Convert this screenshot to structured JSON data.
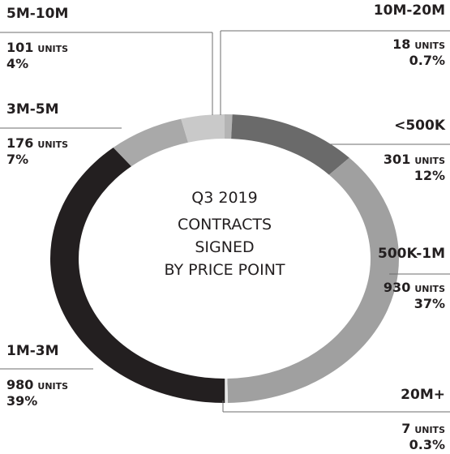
{
  "chart_data": {
    "type": "donut",
    "center_text": [
      "Q3 2019",
      "CONTRACTS",
      "SIGNED",
      "BY PRICE POINT"
    ],
    "categories": [
      "10M-20M",
      "<500K",
      "500K-1M",
      "20M+",
      "1M-3M",
      "3M-5M",
      "5M-10M"
    ],
    "values": [
      18,
      301,
      930,
      7,
      980,
      176,
      101
    ],
    "unit_label": "UNITS",
    "percent_labels": [
      "0.7%",
      "12%",
      "37%",
      "0.3%",
      "39%",
      "7%",
      "4%"
    ],
    "colors": [
      "#b4b4b4",
      "#6a6a6a",
      "#a0a0a0",
      "#e6e6e6",
      "#231f20",
      "#a9a9a9",
      "#c9c9c9"
    ]
  }
}
